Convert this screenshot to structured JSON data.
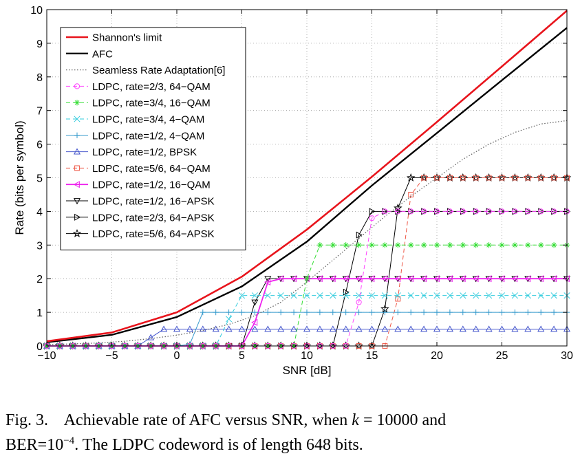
{
  "caption": {
    "label": "Fig. 3.",
    "text_before_k": "Achievable rate of AFC versus SNR, when",
    "k_symbol": "k",
    "k_equals": "= 10000 and",
    "ber_prefix": "BER=10",
    "ber_exponent": "−4",
    "text_after": ". The LDPC codeword is of length 648 bits."
  },
  "chart_data": {
    "type": "line",
    "xlabel": "SNR [dB]",
    "ylabel": "Rate (bits per symbol)",
    "xlim": [
      -10,
      30
    ],
    "ylim": [
      0,
      10
    ],
    "xticks": [
      -10,
      -5,
      0,
      5,
      10,
      15,
      20,
      25,
      30
    ],
    "yticks": [
      0,
      1,
      2,
      3,
      4,
      5,
      6,
      7,
      8,
      9,
      10
    ],
    "grid": true,
    "legend_position": "top-left",
    "series": [
      {
        "name": "Shannon's limit",
        "color": "#e8141c",
        "style": "solid",
        "width": 2.6,
        "marker": "none",
        "x": [
          -10,
          -5,
          0,
          5,
          10,
          15,
          20,
          25,
          30
        ],
        "y": [
          0.14,
          0.4,
          1.0,
          2.06,
          3.46,
          5.03,
          6.66,
          8.31,
          9.97
        ]
      },
      {
        "name": "AFC",
        "color": "#000000",
        "style": "solid",
        "width": 2.4,
        "marker": "none",
        "x": [
          -10,
          -5,
          0,
          5,
          10,
          15,
          20,
          25,
          30
        ],
        "y": [
          0.11,
          0.33,
          0.86,
          1.77,
          3.1,
          4.77,
          6.33,
          7.9,
          9.46
        ]
      },
      {
        "name": "Seamless Rate Adaptation[6]",
        "color": "#666666",
        "style": "dotted",
        "width": 1.3,
        "marker": "none",
        "x": [
          -10,
          -8,
          -6,
          -4,
          -2,
          0,
          2,
          4,
          6,
          8,
          10,
          12,
          14,
          16,
          18,
          20,
          22,
          24,
          26,
          28,
          30
        ],
        "y": [
          0.04,
          0.06,
          0.09,
          0.14,
          0.22,
          0.32,
          0.46,
          0.64,
          0.9,
          1.3,
          1.9,
          2.55,
          3.2,
          3.85,
          4.45,
          5.0,
          5.55,
          6.0,
          6.35,
          6.6,
          6.7
        ]
      },
      {
        "name": "LDPC, rate=2/3, 64−QAM",
        "color": "#ff44ff",
        "style": "dashed",
        "width": 1,
        "marker": "circle",
        "x": [
          -10,
          -9,
          -8,
          -7,
          -6,
          -5,
          -4,
          -3,
          -2,
          -1,
          0,
          1,
          2,
          3,
          4,
          5,
          6,
          7,
          8,
          9,
          10,
          11,
          12,
          13,
          14,
          15,
          16,
          17,
          18,
          19,
          20,
          21,
          22,
          23,
          24,
          25,
          26,
          27,
          28,
          29,
          30
        ],
        "y": [
          0,
          0,
          0,
          0,
          0,
          0,
          0,
          0,
          0,
          0,
          0,
          0,
          0,
          0,
          0,
          0,
          0,
          0,
          0,
          0,
          0,
          0,
          0,
          0,
          1.3,
          3.8,
          4.0,
          4.0,
          4.0,
          4.0,
          4.0,
          4.0,
          4.0,
          4.0,
          4.0,
          4.0,
          4.0,
          4.0,
          4.0,
          4.0,
          4.0
        ]
      },
      {
        "name": "LDPC, rate=3/4, 16−QAM",
        "color": "#33dd33",
        "style": "dashed",
        "width": 1,
        "marker": "asterisk",
        "x": [
          -10,
          -9,
          -8,
          -7,
          -6,
          -5,
          -4,
          -3,
          -2,
          -1,
          0,
          1,
          2,
          3,
          4,
          5,
          6,
          7,
          8,
          9,
          10,
          11,
          12,
          13,
          14,
          15,
          16,
          17,
          18,
          19,
          20,
          21,
          22,
          23,
          24,
          25,
          26,
          27,
          28,
          29,
          30
        ],
        "y": [
          0,
          0,
          0,
          0,
          0,
          0,
          0,
          0,
          0,
          0,
          0,
          0,
          0,
          0,
          0,
          0,
          0,
          0,
          0,
          0,
          2.0,
          3.0,
          3.0,
          3.0,
          3.0,
          3.0,
          3.0,
          3.0,
          3.0,
          3.0,
          3.0,
          3.0,
          3.0,
          3.0,
          3.0,
          3.0,
          3.0,
          3.0,
          3.0,
          3.0,
          3.0
        ]
      },
      {
        "name": "LDPC, rate=3/4, 4−QAM",
        "color": "#33ccdd",
        "style": "dashed",
        "width": 1,
        "marker": "x",
        "x": [
          -10,
          -9,
          -8,
          -7,
          -6,
          -5,
          -4,
          -3,
          -2,
          -1,
          0,
          1,
          2,
          3,
          4,
          5,
          6,
          7,
          8,
          9,
          10,
          11,
          12,
          13,
          14,
          15,
          16,
          17,
          18,
          19,
          20,
          21,
          22,
          23,
          24,
          25,
          26,
          27,
          28,
          29,
          30
        ],
        "y": [
          0,
          0,
          0,
          0,
          0,
          0,
          0,
          0,
          0,
          0,
          0,
          0,
          0,
          0,
          0.8,
          1.5,
          1.5,
          1.5,
          1.5,
          1.5,
          1.5,
          1.5,
          1.5,
          1.5,
          1.5,
          1.5,
          1.5,
          1.5,
          1.5,
          1.5,
          1.5,
          1.5,
          1.5,
          1.5,
          1.5,
          1.5,
          1.5,
          1.5,
          1.5,
          1.5,
          1.5
        ]
      },
      {
        "name": "LDPC, rate=1/2, 4−QAM",
        "color": "#3399cc",
        "style": "solid",
        "width": 1,
        "marker": "plus",
        "x": [
          -10,
          -9,
          -8,
          -7,
          -6,
          -5,
          -4,
          -3,
          -2,
          -1,
          0,
          1,
          2,
          3,
          4,
          5,
          6,
          7,
          8,
          9,
          10,
          11,
          12,
          13,
          14,
          15,
          16,
          17,
          18,
          19,
          20,
          21,
          22,
          23,
          24,
          25,
          26,
          27,
          28,
          29,
          30
        ],
        "y": [
          0,
          0,
          0,
          0,
          0,
          0,
          0,
          0,
          0,
          0,
          0,
          0.05,
          1.0,
          1.0,
          1.0,
          1.0,
          1.0,
          1.0,
          1.0,
          1.0,
          1.0,
          1.0,
          1.0,
          1.0,
          1.0,
          1.0,
          1.0,
          1.0,
          1.0,
          1.0,
          1.0,
          1.0,
          1.0,
          1.0,
          1.0,
          1.0,
          1.0,
          1.0,
          1.0,
          1.0,
          1.0
        ]
      },
      {
        "name": "LDPC, rate=1/2, BPSK",
        "color": "#4455cc",
        "style": "solid",
        "width": 1,
        "marker": "triangle-up",
        "x": [
          -10,
          -9,
          -8,
          -7,
          -6,
          -5,
          -4,
          -3,
          -2,
          -1,
          0,
          1,
          2,
          3,
          4,
          5,
          6,
          7,
          8,
          9,
          10,
          11,
          12,
          13,
          14,
          15,
          16,
          17,
          18,
          19,
          20,
          21,
          22,
          23,
          24,
          25,
          26,
          27,
          28,
          29,
          30
        ],
        "y": [
          0,
          0,
          0,
          0,
          0,
          0,
          0,
          0,
          0.25,
          0.5,
          0.5,
          0.5,
          0.5,
          0.5,
          0.5,
          0.5,
          0.5,
          0.5,
          0.5,
          0.5,
          0.5,
          0.5,
          0.5,
          0.5,
          0.5,
          0.5,
          0.5,
          0.5,
          0.5,
          0.5,
          0.5,
          0.5,
          0.5,
          0.5,
          0.5,
          0.5,
          0.5,
          0.5,
          0.5,
          0.5,
          0.5
        ]
      },
      {
        "name": "LDPC, rate=5/6, 64−QAM",
        "color": "#ee5544",
        "style": "dashed",
        "width": 1,
        "marker": "square",
        "x": [
          -10,
          -9,
          -8,
          -7,
          -6,
          -5,
          -4,
          -3,
          -2,
          -1,
          0,
          1,
          2,
          3,
          4,
          5,
          6,
          7,
          8,
          9,
          10,
          11,
          12,
          13,
          14,
          15,
          16,
          17,
          18,
          19,
          20,
          21,
          22,
          23,
          24,
          25,
          26,
          27,
          28,
          29,
          30
        ],
        "y": [
          0,
          0,
          0,
          0,
          0,
          0,
          0,
          0,
          0,
          0,
          0,
          0,
          0,
          0,
          0,
          0,
          0,
          0,
          0,
          0,
          0,
          0,
          0,
          0,
          0,
          0,
          0,
          1.4,
          4.5,
          5.0,
          5.0,
          5.0,
          5.0,
          5.0,
          5.0,
          5.0,
          5.0,
          5.0,
          5.0,
          5.0,
          5.0
        ]
      },
      {
        "name": "LDPC, rate=1/2, 16−QAM",
        "color": "#ee22ee",
        "style": "solid",
        "width": 1.8,
        "marker": "triangle-left",
        "x": [
          -10,
          -9,
          -8,
          -7,
          -6,
          -5,
          -4,
          -3,
          -2,
          -1,
          0,
          1,
          2,
          3,
          4,
          5,
          6,
          7,
          8,
          9,
          10,
          11,
          12,
          13,
          14,
          15,
          16,
          17,
          18,
          19,
          20,
          21,
          22,
          23,
          24,
          25,
          26,
          27,
          28,
          29,
          30
        ],
        "y": [
          0,
          0,
          0,
          0,
          0,
          0,
          0,
          0,
          0,
          0,
          0,
          0,
          0,
          0,
          0,
          0,
          0.7,
          1.9,
          2.0,
          2.0,
          2.0,
          2.0,
          2.0,
          2.0,
          2.0,
          2.0,
          2.0,
          2.0,
          2.0,
          2.0,
          2.0,
          2.0,
          2.0,
          2.0,
          2.0,
          2.0,
          2.0,
          2.0,
          2.0,
          2.0,
          2.0
        ]
      },
      {
        "name": "LDPC, rate=1/2, 16−APSK",
        "color": "#000000",
        "style": "solid",
        "width": 1,
        "marker": "triangle-down",
        "x": [
          -10,
          -9,
          -8,
          -7,
          -6,
          -5,
          -4,
          -3,
          -2,
          -1,
          0,
          1,
          2,
          3,
          4,
          5,
          6,
          7,
          8,
          9,
          10,
          11,
          12,
          13,
          14,
          15,
          16,
          17,
          18,
          19,
          20,
          21,
          22,
          23,
          24,
          25,
          26,
          27,
          28,
          29,
          30
        ],
        "y": [
          0,
          0,
          0,
          0,
          0,
          0,
          0,
          0,
          0,
          0,
          0,
          0,
          0,
          0,
          0,
          0,
          1.3,
          2.0,
          2.0,
          2.0,
          2.0,
          2.0,
          2.0,
          2.0,
          2.0,
          2.0,
          2.0,
          2.0,
          2.0,
          2.0,
          2.0,
          2.0,
          2.0,
          2.0,
          2.0,
          2.0,
          2.0,
          2.0,
          2.0,
          2.0,
          2.0
        ]
      },
      {
        "name": "LDPC, rate=2/3, 64−APSK",
        "color": "#000000",
        "style": "solid",
        "width": 1,
        "marker": "triangle-right",
        "x": [
          -10,
          -9,
          -8,
          -7,
          -6,
          -5,
          -4,
          -3,
          -2,
          -1,
          0,
          1,
          2,
          3,
          4,
          5,
          6,
          7,
          8,
          9,
          10,
          11,
          12,
          13,
          14,
          15,
          16,
          17,
          18,
          19,
          20,
          21,
          22,
          23,
          24,
          25,
          26,
          27,
          28,
          29,
          30
        ],
        "y": [
          0,
          0,
          0,
          0,
          0,
          0,
          0,
          0,
          0,
          0,
          0,
          0,
          0,
          0,
          0,
          0,
          0,
          0,
          0,
          0,
          0,
          0,
          0,
          1.6,
          3.3,
          4.0,
          4.0,
          4.0,
          4.0,
          4.0,
          4.0,
          4.0,
          4.0,
          4.0,
          4.0,
          4.0,
          4.0,
          4.0,
          4.0,
          4.0,
          4.0
        ]
      },
      {
        "name": "LDPC, rate=5/6, 64−APSK",
        "color": "#000000",
        "style": "solid",
        "width": 1,
        "marker": "star",
        "x": [
          -10,
          -9,
          -8,
          -7,
          -6,
          -5,
          -4,
          -3,
          -2,
          -1,
          0,
          1,
          2,
          3,
          4,
          5,
          6,
          7,
          8,
          9,
          10,
          11,
          12,
          13,
          14,
          15,
          16,
          17,
          18,
          19,
          20,
          21,
          22,
          23,
          24,
          25,
          26,
          27,
          28,
          29,
          30
        ],
        "y": [
          0,
          0,
          0,
          0,
          0,
          0,
          0,
          0,
          0,
          0,
          0,
          0,
          0,
          0,
          0,
          0,
          0,
          0,
          0,
          0,
          0,
          0,
          0,
          0,
          0,
          0,
          1.1,
          4.1,
          5.0,
          5.0,
          5.0,
          5.0,
          5.0,
          5.0,
          5.0,
          5.0,
          5.0,
          5.0,
          5.0,
          5.0,
          5.0
        ]
      }
    ]
  }
}
